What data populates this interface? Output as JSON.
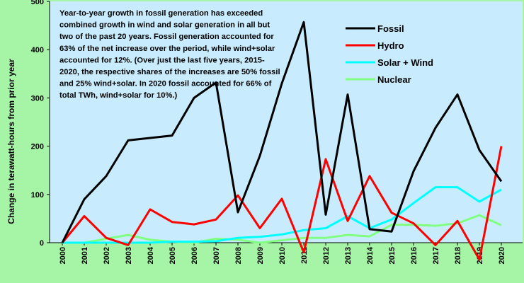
{
  "chart_data": {
    "type": "line",
    "title": "",
    "ylabel": "Change in terawatt-hours from prior year",
    "xlabel": "",
    "ylim": [
      0,
      500
    ],
    "yticks": [
      0,
      100,
      200,
      300,
      400,
      500
    ],
    "grid": false,
    "legend_position": "top-right",
    "x": [
      "2000",
      "2001",
      "2002",
      "2003",
      "2004",
      "2005",
      "2006",
      "2007",
      "2008",
      "2009",
      "2010",
      "2011",
      "2012",
      "2013",
      "2014",
      "2015",
      "2016",
      "2017",
      "2018",
      "2019",
      "2020"
    ],
    "annotation": [
      "Year-to-year growth in fossil generation has exceeded",
      "combined growth in wind and solar generation in all but",
      "two of the past 20 years. Fossil generation accounted for",
      "63% of the net increase over the period, while wind+solar",
      "accounted for 12%. (Over just the last five years, 2015-",
      "2020, the respective shares of the increases are 50% fossil",
      "and 25% wind+solar. In 2020 fossil accounted for 66% of",
      "total TWh, wind+solar for 10%.)"
    ],
    "series": [
      {
        "name": "Fossil",
        "color": "#000000",
        "values": [
          0,
          90,
          138,
          212,
          217,
          222,
          300,
          332,
          63,
          180,
          330,
          457,
          58,
          307,
          28,
          23,
          148,
          238,
          307,
          192,
          127
        ]
      },
      {
        "name": "Hydro",
        "color": "#ff0000",
        "values": [
          0,
          55,
          10,
          -5,
          69,
          43,
          38,
          48,
          98,
          30,
          91,
          -20,
          173,
          45,
          138,
          62,
          40,
          -5,
          45,
          -35,
          200
        ]
      },
      {
        "name": "Solar + Wind",
        "color": "#00ffff",
        "values": [
          0,
          0,
          0,
          0,
          0,
          2,
          2,
          3,
          10,
          12,
          17,
          26,
          30,
          55,
          30,
          48,
          82,
          115,
          115,
          85,
          110
        ]
      },
      {
        "name": "Nuclear",
        "color": "#80ff80",
        "values": [
          0,
          0,
          8,
          16,
          6,
          2,
          0,
          8,
          6,
          0,
          5,
          10,
          10,
          16,
          13,
          37,
          37,
          35,
          40,
          57,
          36
        ]
      }
    ]
  }
}
